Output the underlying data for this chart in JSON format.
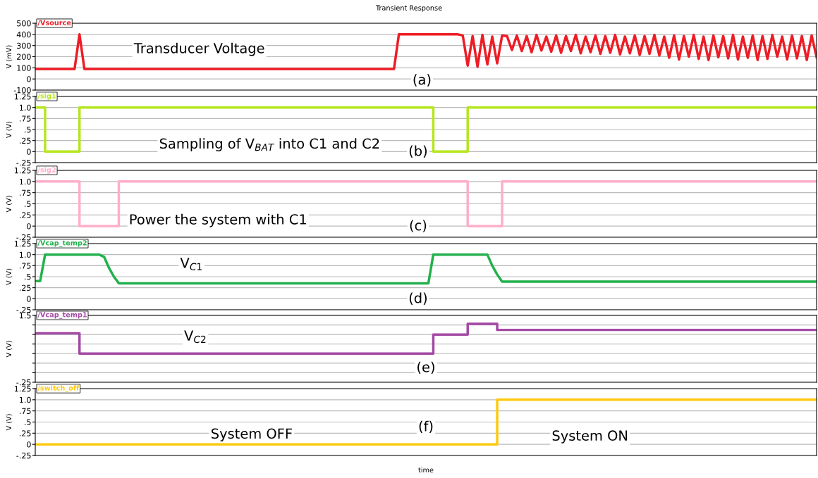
{
  "chart_data": [
    {
      "type": "line",
      "title": "Transient Response",
      "ylabel": "V (mV)",
      "categories": [
        null,
        null,
        null,
        null,
        null,
        null,
        null,
        null,
        null,
        null,
        null,
        null,
        null,
        null,
        null,
        null,
        null,
        null,
        null,
        null,
        null,
        null,
        null,
        null,
        null,
        null,
        null,
        null,
        null,
        null,
        null,
        null,
        null,
        null,
        null,
        null,
        null,
        null,
        null,
        null,
        null,
        null,
        null,
        null,
        null,
        null,
        null,
        null,
        null,
        null,
        null,
        null,
        null,
        null,
        null,
        null,
        null,
        null,
        null,
        null,
        null,
        null,
        null,
        null,
        null,
        null,
        null,
        null,
        null,
        null,
        null,
        null,
        null,
        null,
        null,
        null,
        null,
        null,
        null,
        null,
        null,
        null,
        null,
        null,
        null,
        null,
        null,
        null,
        null,
        null,
        null,
        null,
        null,
        null,
        null,
        null,
        null,
        null,
        null,
        null,
        null,
        null,
        null,
        null,
        null,
        null,
        null,
        null,
        null,
        null,
        null,
        null,
        null,
        null,
        null,
        null,
        null,
        null,
        null,
        null,
        null,
        null,
        null,
        null,
        null,
        null,
        null,
        null,
        null,
        null,
        null,
        null,
        null,
        null,
        null,
        null,
        null,
        null,
        null,
        null,
        null,
        null,
        null,
        null,
        null,
        null,
        null,
        null,
        null,
        null,
        null,
        null,
        null,
        null,
        null,
        null,
        null,
        null,
        null,
        null
      ],
      "series": [
        {
          "name": "/Vsource",
          "color": "#ee1c25",
          "values": [
            90,
            90,
            90,
            90,
            90,
            90,
            90,
            90,
            90,
            400,
            90,
            90,
            90,
            90,
            90,
            90,
            90,
            90,
            90,
            90,
            90,
            90,
            90,
            90,
            90,
            90,
            90,
            90,
            90,
            90,
            90,
            90,
            90,
            90,
            90,
            90,
            90,
            90,
            90,
            90,
            90,
            90,
            90,
            90,
            90,
            90,
            90,
            90,
            90,
            90,
            90,
            90,
            90,
            90,
            90,
            90,
            90,
            90,
            90,
            90,
            90,
            90,
            90,
            90,
            90,
            90,
            90,
            90,
            90,
            90,
            90,
            90,
            90,
            90,
            400,
            400,
            400,
            400,
            400,
            400,
            400,
            400,
            400,
            400,
            400,
            400,
            400,
            390,
            120,
            385,
            110,
            395,
            130,
            380,
            140,
            390,
            385,
            260,
            390,
            250,
            385,
            240,
            395,
            255,
            380,
            245,
            390,
            235,
            385,
            250,
            395,
            230,
            380,
            240,
            390,
            225,
            385,
            235,
            395,
            220,
            380,
            230,
            390,
            215,
            385,
            225,
            395,
            210,
            380,
            190,
            390,
            175,
            385,
            200,
            395,
            180,
            380,
            170,
            390,
            195,
            385,
            185,
            395,
            175,
            380,
            190,
            390,
            170,
            385,
            180,
            395,
            200,
            380,
            175,
            390,
            185,
            385,
            170,
            390,
            195
          ]
        }
      ],
      "ylim": [
        -100,
        500
      ],
      "yticks": [
        -100,
        0,
        100,
        200,
        300,
        400,
        500
      ],
      "grid": "y",
      "tick_labels": "y",
      "annotations": [
        "Transducer Voltage",
        "(a)"
      ]
    },
    {
      "type": "step",
      "ylabel": "V (V)",
      "categories": [
        null,
        null,
        null,
        null,
        null,
        null,
        null,
        null,
        null,
        null,
        null,
        null,
        null,
        null,
        null,
        null,
        null,
        null,
        null,
        null,
        null,
        null,
        null,
        null,
        null,
        null,
        null,
        null,
        null,
        null,
        null,
        null,
        null,
        null,
        null,
        null,
        null,
        null,
        null,
        null,
        null,
        null,
        null,
        null,
        null,
        null,
        null,
        null,
        null,
        null,
        null,
        null,
        null,
        null,
        null,
        null,
        null,
        null,
        null,
        null,
        null,
        null,
        null,
        null,
        null,
        null,
        null,
        null,
        null,
        null,
        null,
        null,
        null,
        null,
        null,
        null,
        null,
        null,
        null,
        null,
        null,
        null,
        null,
        null,
        null,
        null,
        null,
        null,
        null,
        null,
        null,
        null,
        null,
        null,
        null,
        null,
        null,
        null,
        null,
        null,
        null,
        null,
        null,
        null,
        null,
        null,
        null,
        null,
        null,
        null,
        null,
        null,
        null,
        null,
        null,
        null,
        null,
        null,
        null,
        null,
        null,
        null,
        null,
        null,
        null,
        null,
        null,
        null,
        null,
        null,
        null,
        null,
        null,
        null,
        null,
        null,
        null,
        null,
        null,
        null,
        null,
        null,
        null,
        null,
        null,
        null,
        null,
        null,
        null,
        null,
        null,
        null,
        null,
        null,
        null,
        null,
        null,
        null,
        null,
        null
      ],
      "series": [
        {
          "name": "/sig1",
          "color": "#b5e61d",
          "values": [
            1,
            1,
            0,
            0,
            0,
            0,
            0,
            0,
            0,
            1,
            1,
            1,
            1,
            1,
            1,
            1,
            1,
            1,
            1,
            1,
            1,
            1,
            1,
            1,
            1,
            1,
            1,
            1,
            1,
            1,
            1,
            1,
            1,
            1,
            1,
            1,
            1,
            1,
            1,
            1,
            1,
            1,
            1,
            1,
            1,
            1,
            1,
            1,
            1,
            1,
            1,
            1,
            1,
            1,
            1,
            1,
            1,
            1,
            1,
            1,
            1,
            1,
            1,
            1,
            1,
            1,
            1,
            1,
            1,
            1,
            1,
            1,
            1,
            1,
            1,
            1,
            1,
            1,
            1,
            1,
            1,
            0,
            0,
            0,
            0,
            0,
            0,
            0,
            1,
            1,
            1,
            1,
            1,
            1,
            1,
            1,
            1,
            1,
            1,
            1,
            1,
            1,
            1,
            1,
            1,
            1,
            1,
            1,
            1,
            1,
            1,
            1,
            1,
            1,
            1,
            1,
            1,
            1,
            1,
            1,
            1,
            1,
            1,
            1,
            1,
            1,
            1,
            1,
            1,
            1,
            1,
            1,
            1,
            1,
            1,
            1,
            1,
            1,
            1,
            1,
            1,
            1,
            1,
            1,
            1,
            1,
            1,
            1,
            1,
            1,
            1,
            1,
            1,
            1,
            1,
            1,
            1,
            1,
            1,
            1
          ]
        }
      ],
      "ylim": [
        -0.25,
        1.25
      ],
      "yticks": [
        {
          "value": -0.25,
          "label": "-.25"
        },
        0,
        {
          "value": 0.25,
          "label": ".25"
        },
        {
          "value": 0.5,
          "label": ".5"
        },
        {
          "value": 0.75,
          "label": ".75"
        },
        {
          "value": 1.0,
          "label": "1.0"
        },
        1.25
      ],
      "grid": "y",
      "tick_labels": "y",
      "annotations": [
        "Sampling of V$_{BAT}$ into C1 and C2",
        "(b)"
      ]
    },
    {
      "type": "step",
      "ylabel": "V (V)",
      "categories": [
        null,
        null,
        null,
        null,
        null,
        null,
        null,
        null,
        null,
        null,
        null,
        null,
        null,
        null,
        null,
        null,
        null,
        null,
        null,
        null,
        null,
        null,
        null,
        null,
        null,
        null,
        null,
        null,
        null,
        null,
        null,
        null,
        null,
        null,
        null,
        null,
        null,
        null,
        null,
        null,
        null,
        null,
        null,
        null,
        null,
        null,
        null,
        null,
        null,
        null,
        null,
        null,
        null,
        null,
        null,
        null,
        null,
        null,
        null,
        null,
        null,
        null,
        null,
        null,
        null,
        null,
        null,
        null,
        null,
        null,
        null,
        null,
        null,
        null,
        null,
        null,
        null,
        null,
        null,
        null,
        null,
        null,
        null,
        null,
        null,
        null,
        null,
        null,
        null,
        null,
        null,
        null,
        null,
        null,
        null,
        null,
        null,
        null,
        null,
        null,
        null,
        null,
        null,
        null,
        null,
        null,
        null,
        null,
        null,
        null,
        null,
        null,
        null,
        null,
        null,
        null,
        null,
        null,
        null,
        null,
        null,
        null,
        null,
        null,
        null,
        null,
        null,
        null,
        null,
        null,
        null,
        null,
        null,
        null,
        null,
        null,
        null,
        null,
        null,
        null,
        null,
        null,
        null,
        null,
        null,
        null,
        null,
        null,
        null,
        null,
        null,
        null,
        null,
        null,
        null,
        null,
        null,
        null,
        null,
        null
      ],
      "series": [
        {
          "name": "/sig2",
          "color": "#ffaec9",
          "values": [
            1,
            1,
            1,
            1,
            1,
            1,
            1,
            1,
            1,
            0,
            0,
            0,
            0,
            0,
            0,
            0,
            0,
            1,
            1,
            1,
            1,
            1,
            1,
            1,
            1,
            1,
            1,
            1,
            1,
            1,
            1,
            1,
            1,
            1,
            1,
            1,
            1,
            1,
            1,
            1,
            1,
            1,
            1,
            1,
            1,
            1,
            1,
            1,
            1,
            1,
            1,
            1,
            1,
            1,
            1,
            1,
            1,
            1,
            1,
            1,
            1,
            1,
            1,
            1,
            1,
            1,
            1,
            1,
            1,
            1,
            1,
            1,
            1,
            1,
            1,
            1,
            1,
            1,
            1,
            1,
            1,
            1,
            1,
            1,
            1,
            1,
            1,
            1,
            0,
            0,
            0,
            0,
            0,
            0,
            0,
            1,
            1,
            1,
            1,
            1,
            1,
            1,
            1,
            1,
            1,
            1,
            1,
            1,
            1,
            1,
            1,
            1,
            1,
            1,
            1,
            1,
            1,
            1,
            1,
            1,
            1,
            1,
            1,
            1,
            1,
            1,
            1,
            1,
            1,
            1,
            1,
            1,
            1,
            1,
            1,
            1,
            1,
            1,
            1,
            1,
            1,
            1,
            1,
            1,
            1,
            1,
            1,
            1,
            1,
            1,
            1,
            1,
            1,
            1,
            1,
            1,
            1,
            1,
            1,
            1
          ]
        }
      ],
      "ylim": [
        -0.25,
        1.25
      ],
      "yticks": [
        {
          "value": -0.25,
          "label": "-.25"
        },
        0,
        {
          "value": 0.25,
          "label": ".25"
        },
        {
          "value": 0.5,
          "label": ".5"
        },
        {
          "value": 0.75,
          "label": ".75"
        },
        {
          "value": 1.0,
          "label": "1.0"
        },
        1.25
      ],
      "grid": "y",
      "tick_labels": "y",
      "annotations": [
        "Power the system with C1",
        "(c)"
      ]
    },
    {
      "type": "line",
      "ylabel": "V (V)",
      "categories": [
        null,
        null,
        null,
        null,
        null,
        null,
        null,
        null,
        null,
        null,
        null,
        null,
        null,
        null,
        null,
        null,
        null,
        null,
        null,
        null,
        null,
        null,
        null,
        null,
        null,
        null,
        null,
        null,
        null,
        null,
        null,
        null,
        null,
        null,
        null,
        null,
        null,
        null,
        null,
        null,
        null,
        null,
        null,
        null,
        null,
        null,
        null,
        null,
        null,
        null,
        null,
        null,
        null,
        null,
        null,
        null,
        null,
        null,
        null,
        null,
        null,
        null,
        null,
        null,
        null,
        null,
        null,
        null,
        null,
        null,
        null,
        null,
        null,
        null,
        null,
        null,
        null,
        null,
        null,
        null,
        null,
        null,
        null,
        null,
        null,
        null,
        null,
        null,
        null,
        null,
        null,
        null,
        null,
        null,
        null,
        null,
        null,
        null,
        null,
        null,
        null,
        null,
        null,
        null,
        null,
        null,
        null,
        null,
        null,
        null,
        null,
        null,
        null,
        null,
        null,
        null,
        null,
        null,
        null,
        null,
        null,
        null,
        null,
        null,
        null,
        null,
        null,
        null,
        null,
        null,
        null,
        null,
        null,
        null,
        null,
        null,
        null,
        null,
        null,
        null,
        null,
        null,
        null,
        null,
        null,
        null,
        null,
        null,
        null,
        null,
        null,
        null,
        null,
        null,
        null,
        null,
        null,
        null,
        null,
        null
      ],
      "series": [
        {
          "name": "/Vcap_temp2",
          "color": "#22b14c",
          "values": [
            0.4,
            0.4,
            1,
            1,
            1,
            1,
            1,
            1,
            1,
            1,
            1,
            1,
            1,
            1,
            0.95,
            0.7,
            0.5,
            0.35,
            0.35,
            0.35,
            0.35,
            0.35,
            0.35,
            0.35,
            0.35,
            0.35,
            0.35,
            0.35,
            0.35,
            0.35,
            0.35,
            0.35,
            0.35,
            0.35,
            0.35,
            0.35,
            0.35,
            0.35,
            0.35,
            0.35,
            0.35,
            0.35,
            0.35,
            0.35,
            0.35,
            0.35,
            0.35,
            0.35,
            0.35,
            0.35,
            0.35,
            0.35,
            0.35,
            0.35,
            0.35,
            0.35,
            0.35,
            0.35,
            0.35,
            0.35,
            0.35,
            0.35,
            0.35,
            0.35,
            0.35,
            0.35,
            0.35,
            0.35,
            0.35,
            0.35,
            0.35,
            0.35,
            0.35,
            0.35,
            0.35,
            0.35,
            0.35,
            0.35,
            0.35,
            0.35,
            0.35,
            1,
            1,
            1,
            1,
            1,
            1,
            1,
            1,
            1,
            1,
            1,
            1,
            0.75,
            0.55,
            0.39,
            0.39,
            0.39,
            0.39,
            0.39,
            0.39,
            0.39,
            0.39,
            0.39,
            0.39,
            0.39,
            0.39,
            0.39,
            0.39,
            0.39,
            0.39,
            0.39,
            0.39,
            0.39,
            0.39,
            0.39,
            0.39,
            0.39,
            0.39,
            0.39,
            0.39,
            0.39,
            0.39,
            0.39,
            0.39,
            0.39,
            0.39,
            0.39,
            0.39,
            0.39,
            0.39,
            0.39,
            0.39,
            0.39,
            0.39,
            0.39,
            0.39,
            0.39,
            0.39,
            0.39,
            0.39,
            0.39,
            0.39,
            0.39,
            0.39,
            0.39,
            0.39,
            0.39,
            0.39,
            0.39,
            0.39,
            0.39,
            0.39,
            0.39,
            0.39,
            0.39,
            0.39,
            0.39,
            0.39,
            0.39
          ]
        }
      ],
      "ylim": [
        -0.25,
        1.25
      ],
      "yticks": [
        {
          "value": -0.25,
          "label": "-.25"
        },
        0,
        {
          "value": 0.25,
          "label": ".25"
        },
        {
          "value": 0.5,
          "label": ".5"
        },
        {
          "value": 0.75,
          "label": ".75"
        },
        {
          "value": 1.0,
          "label": "1.0"
        },
        1.25
      ],
      "grid": "y",
      "tick_labels": "y",
      "annotations": [
        "V$_{C1}$",
        "(d)"
      ]
    },
    {
      "type": "step",
      "ylabel": "V (V)",
      "categories": [
        null,
        null,
        null,
        null,
        null,
        null,
        null,
        null,
        null,
        null,
        null,
        null,
        null,
        null,
        null,
        null,
        null,
        null,
        null,
        null,
        null,
        null,
        null,
        null,
        null,
        null,
        null,
        null,
        null,
        null,
        null,
        null,
        null,
        null,
        null,
        null,
        null,
        null,
        null,
        null,
        null,
        null,
        null,
        null,
        null,
        null,
        null,
        null,
        null,
        null,
        null,
        null,
        null,
        null,
        null,
        null,
        null,
        null,
        null,
        null,
        null,
        null,
        null,
        null,
        null,
        null,
        null,
        null,
        null,
        null,
        null,
        null,
        null,
        null,
        null,
        null,
        null,
        null,
        null,
        null,
        null,
        null,
        null,
        null,
        null,
        null,
        null,
        null,
        null,
        null,
        null,
        null,
        null,
        null,
        null,
        null,
        null,
        null,
        null,
        null,
        null,
        null,
        null,
        null,
        null,
        null,
        null,
        null,
        null,
        null,
        null,
        null,
        null,
        null,
        null,
        null,
        null,
        null,
        null,
        null,
        null,
        null,
        null,
        null,
        null,
        null,
        null,
        null,
        null,
        null,
        null,
        null,
        null,
        null,
        null,
        null,
        null,
        null,
        null,
        null,
        null,
        null,
        null,
        null,
        null,
        null,
        null,
        null,
        null,
        null,
        null,
        null,
        null,
        null,
        null,
        null,
        null,
        null,
        null,
        null
      ],
      "series": [
        {
          "name": "/Vcap_temp1",
          "color": "#a349a4",
          "values": [
            1.03,
            1.03,
            1.03,
            1.03,
            1.03,
            1.03,
            1.03,
            1.03,
            1.03,
            0.5,
            0.5,
            0.5,
            0.5,
            0.5,
            0.5,
            0.5,
            0.5,
            0.5,
            0.5,
            0.5,
            0.5,
            0.5,
            0.5,
            0.5,
            0.5,
            0.5,
            0.5,
            0.5,
            0.5,
            0.5,
            0.5,
            0.5,
            0.5,
            0.5,
            0.5,
            0.5,
            0.5,
            0.5,
            0.5,
            0.5,
            0.5,
            0.5,
            0.5,
            0.5,
            0.5,
            0.5,
            0.5,
            0.5,
            0.5,
            0.5,
            0.5,
            0.5,
            0.5,
            0.5,
            0.5,
            0.5,
            0.5,
            0.5,
            0.5,
            0.5,
            0.5,
            0.5,
            0.5,
            0.5,
            0.5,
            0.5,
            0.5,
            0.5,
            0.5,
            0.5,
            0.5,
            0.5,
            0.5,
            0.5,
            0.5,
            0.5,
            0.5,
            0.5,
            0.5,
            0.5,
            0.5,
            1,
            1,
            1,
            1,
            1,
            1,
            1,
            1.28,
            1.28,
            1.28,
            1.28,
            1.28,
            1.28,
            1.12,
            1.12,
            1.12,
            1.12,
            1.12,
            1.12,
            1.12,
            1.12,
            1.12,
            1.12,
            1.12,
            1.12,
            1.12,
            1.12,
            1.12,
            1.12,
            1.12,
            1.12,
            1.12,
            1.12,
            1.12,
            1.12,
            1.12,
            1.12,
            1.12,
            1.12,
            1.12,
            1.12,
            1.12,
            1.12,
            1.12,
            1.12,
            1.12,
            1.12,
            1.12,
            1.12,
            1.12,
            1.12,
            1.12,
            1.12,
            1.12,
            1.12,
            1.12,
            1.12,
            1.12,
            1.12,
            1.12,
            1.12,
            1.12,
            1.12,
            1.12,
            1.12,
            1.12,
            1.12,
            1.12,
            1.12,
            1.12,
            1.12,
            1.12,
            1.12,
            1.12,
            1.12,
            1.12,
            1.12,
            1.12,
            1.12
          ]
        }
      ],
      "ylim": [
        -0.25,
        1.5
      ],
      "yticks": [
        {
          "value": -0.25,
          "label": "-.25"
        },
        {
          "value": 0,
          "label": null
        },
        {
          "value": 0.25,
          "label": null
        },
        {
          "value": 0.5,
          "label": null
        },
        {
          "value": 0.75,
          "label": null
        },
        {
          "value": 1.0,
          "label": null
        },
        {
          "value": 1.25,
          "label": null
        },
        1.5
      ],
      "grid": "y",
      "tick_labels": "y",
      "annotations": [
        "V$_{C2}$",
        "(e)"
      ]
    },
    {
      "type": "step",
      "ylabel": "V (V)",
      "xlabel": "time",
      "categories": [
        null,
        null,
        null,
        null,
        null,
        null,
        null,
        null,
        null,
        null,
        null,
        null,
        null,
        null,
        null,
        null,
        null,
        null,
        null,
        null,
        null,
        null,
        null,
        null,
        null,
        null,
        null,
        null,
        null,
        null,
        null,
        null,
        null,
        null,
        null,
        null,
        null,
        null,
        null,
        null,
        null,
        null,
        null,
        null,
        null,
        null,
        null,
        null,
        null,
        null,
        null,
        null,
        null,
        null,
        null,
        null,
        null,
        null,
        null,
        null,
        null,
        null,
        null,
        null,
        null,
        null,
        null,
        null,
        null,
        null,
        null,
        null,
        null,
        null,
        null,
        null,
        null,
        null,
        null,
        null,
        null,
        null,
        null,
        null,
        null,
        null,
        null,
        null,
        null,
        null,
        null,
        null,
        null,
        null,
        null,
        null,
        null,
        null,
        null,
        null,
        null,
        null,
        null,
        null,
        null,
        null,
        null,
        null,
        null,
        null,
        null,
        null,
        null,
        null,
        null,
        null,
        null,
        null,
        null,
        null,
        null,
        null,
        null,
        null,
        null,
        null,
        null,
        null,
        null,
        null,
        null,
        null,
        null,
        null,
        null,
        null,
        null,
        null,
        null,
        null,
        null,
        null,
        null,
        null,
        null,
        null,
        null,
        null,
        null,
        null,
        null,
        null,
        null,
        null,
        null,
        null,
        null,
        null,
        null,
        null
      ],
      "series": [
        {
          "name": "/switch_off",
          "color": "#ffc90e",
          "values": [
            0,
            0,
            0,
            0,
            0,
            0,
            0,
            0,
            0,
            0,
            0,
            0,
            0,
            0,
            0,
            0,
            0,
            0,
            0,
            0,
            0,
            0,
            0,
            0,
            0,
            0,
            0,
            0,
            0,
            0,
            0,
            0,
            0,
            0,
            0,
            0,
            0,
            0,
            0,
            0,
            0,
            0,
            0,
            0,
            0,
            0,
            0,
            0,
            0,
            0,
            0,
            0,
            0,
            0,
            0,
            0,
            0,
            0,
            0,
            0,
            0,
            0,
            0,
            0,
            0,
            0,
            0,
            0,
            0,
            0,
            0,
            0,
            0,
            0,
            0,
            0,
            0,
            0,
            0,
            0,
            0,
            0,
            0,
            0,
            0,
            0,
            0,
            0,
            0,
            0,
            0,
            0,
            0,
            0,
            1,
            1,
            1,
            1,
            1,
            1,
            1,
            1,
            1,
            1,
            1,
            1,
            1,
            1,
            1,
            1,
            1,
            1,
            1,
            1,
            1,
            1,
            1,
            1,
            1,
            1,
            1,
            1,
            1,
            1,
            1,
            1,
            1,
            1,
            1,
            1,
            1,
            1,
            1,
            1,
            1,
            1,
            1,
            1,
            1,
            1,
            1,
            1,
            1,
            1,
            1,
            1,
            1,
            1,
            1,
            1,
            1,
            1,
            1,
            1,
            1,
            1,
            1,
            1,
            1,
            1
          ]
        }
      ],
      "ylim": [
        -0.25,
        1.25
      ],
      "yticks": [
        {
          "value": -0.25,
          "label": "-.25"
        },
        0,
        {
          "value": 0.25,
          "label": ".25"
        },
        {
          "value": 0.5,
          "label": ".5"
        },
        {
          "value": 0.75,
          "label": ".75"
        },
        {
          "value": 1.0,
          "label": "1.0"
        },
        1.25
      ],
      "grid": "y",
      "tick_labels": "y",
      "annotations": [
        "System OFF",
        "(f)",
        "System ON"
      ]
    }
  ]
}
